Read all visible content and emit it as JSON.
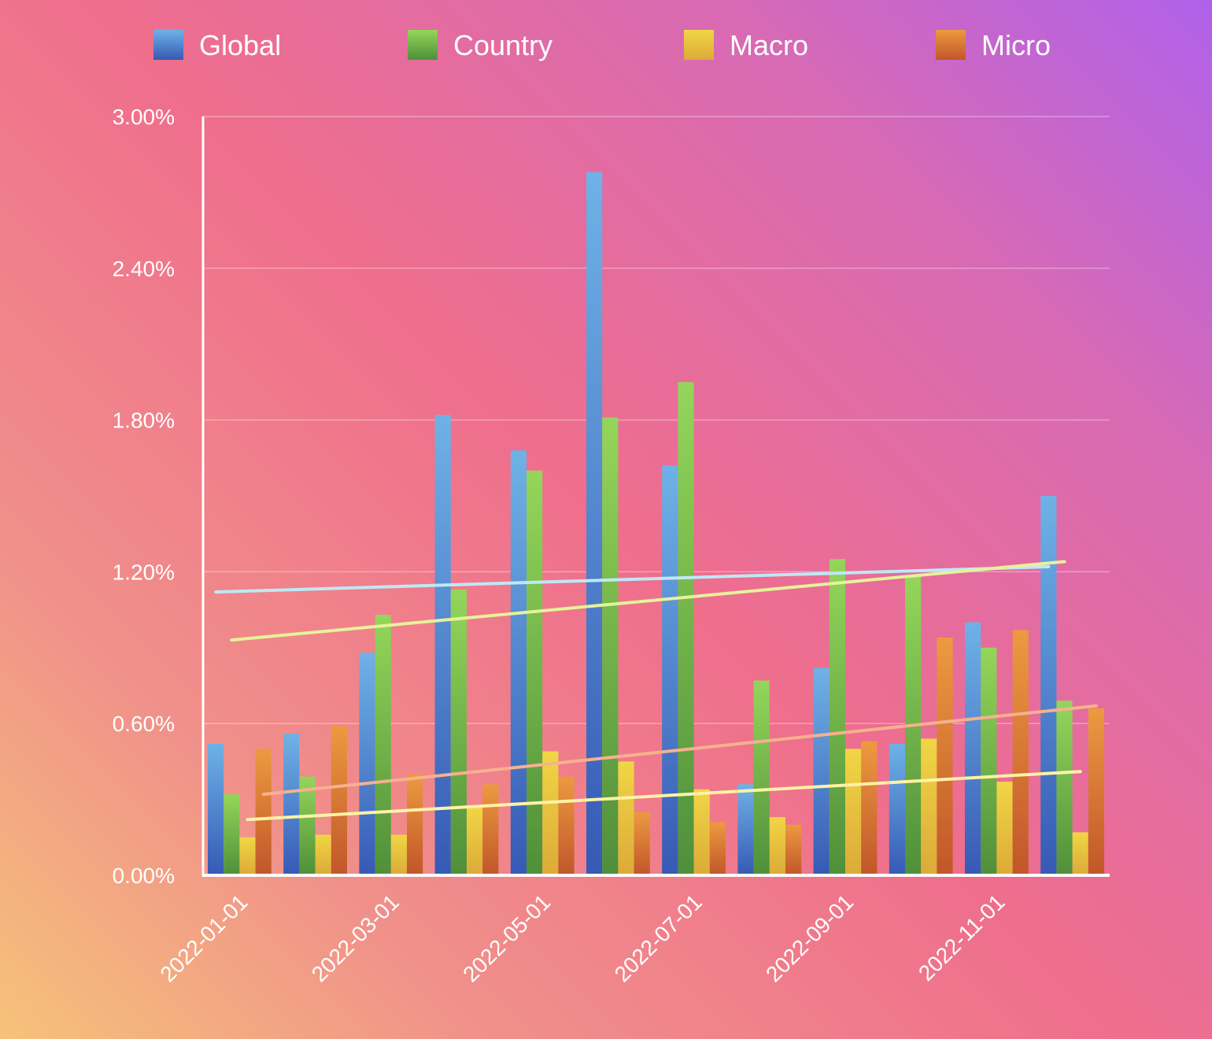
{
  "chart_data": {
    "type": "bar",
    "title": "",
    "xlabel": "",
    "ylabel": "",
    "ylim": [
      0,
      0.03
    ],
    "yticks": [
      "0.00%",
      "0.60%",
      "1.20%",
      "1.80%",
      "2.40%",
      "3.00%"
    ],
    "ytick_values": [
      0,
      0.006,
      0.012,
      0.018,
      0.024,
      0.03
    ],
    "grid": true,
    "legend_position": "top",
    "categories": [
      "2022-01-01",
      "2022-02-01",
      "2022-03-01",
      "2022-04-01",
      "2022-05-01",
      "2022-06-01",
      "2022-07-01",
      "2022-08-01",
      "2022-09-01",
      "2022-10-01",
      "2022-11-01",
      "2022-12-01"
    ],
    "xtick_labels": [
      "2022-01-01",
      "2022-03-01",
      "2022-05-01",
      "2022-07-01",
      "2022-09-01",
      "2022-11-01"
    ],
    "xtick_indices": [
      0,
      2,
      4,
      6,
      8,
      10
    ],
    "series": [
      {
        "name": "Global",
        "color_light": "#6fb2e6",
        "color_dark": "#3659b5",
        "trend_color": "#bfe8f6",
        "values": [
          0.0052,
          0.0056,
          0.0088,
          0.0182,
          0.0168,
          0.0278,
          0.0162,
          0.0036,
          0.0082,
          0.0052,
          0.01,
          0.015
        ],
        "trend": [
          0.0112,
          0.0122
        ]
      },
      {
        "name": "Country",
        "color_light": "#94d65a",
        "color_dark": "#4f8f3a",
        "trend_color": "#e6f29a",
        "values": [
          0.0032,
          0.0039,
          0.0103,
          0.0113,
          0.016,
          0.0181,
          0.0195,
          0.0077,
          0.0125,
          0.0118,
          0.009,
          0.0069
        ],
        "trend": [
          0.0093,
          0.0124
        ]
      },
      {
        "name": "Macro",
        "color_light": "#f0d645",
        "color_dark": "#dcaa38",
        "trend_color": "#fff2a6",
        "values": [
          0.0015,
          0.0016,
          0.0016,
          0.0027,
          0.0049,
          0.0045,
          0.0034,
          0.0023,
          0.005,
          0.0054,
          0.0037,
          0.0017
        ],
        "trend": [
          0.0022,
          0.0041
        ]
      },
      {
        "name": "Micro",
        "color_light": "#ec9a40",
        "color_dark": "#c1562a",
        "trend_color": "#f6b18e",
        "values": [
          0.005,
          0.0059,
          0.004,
          0.0036,
          0.0039,
          0.0025,
          0.0021,
          0.002,
          0.0053,
          0.0094,
          0.0097,
          0.0066
        ],
        "trend": [
          0.0032,
          0.0067
        ]
      }
    ]
  }
}
